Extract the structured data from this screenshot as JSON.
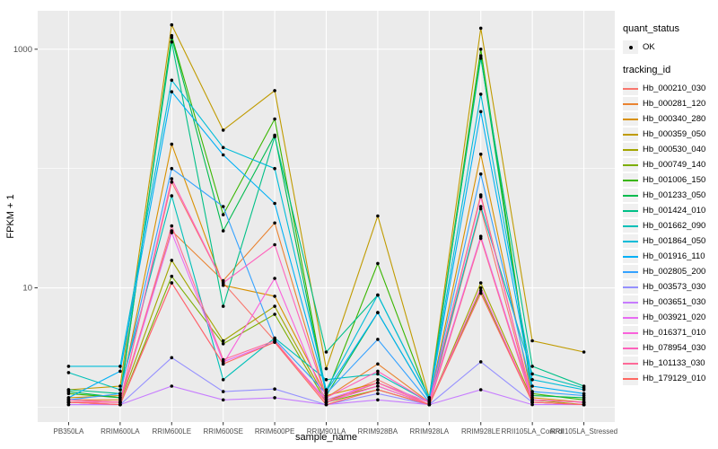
{
  "chart_data": {
    "type": "line",
    "title": "",
    "xlabel": "sample_name",
    "ylabel": "FPKM + 1",
    "yscale": "log10",
    "ylim": [
      0.75,
      2100
    ],
    "yticks": [
      {
        "value": 10,
        "label": "10"
      },
      {
        "value": 1000,
        "label": "1000"
      }
    ],
    "minor_gridlines": [
      1,
      100
    ],
    "grid_on": true,
    "legend_position": "right",
    "panel_bg": "#EBEBEB",
    "grid_color": "#FFFFFF",
    "point_color": "#000000",
    "axis_text_color": "#4D4D4D",
    "tick_color": "#333333",
    "categories": [
      "PB350LA",
      "RRIM600LA",
      "RRIM600LE",
      "RRIM600SE",
      "RRIM600PE",
      "RRIM901LA",
      "RRIM928BA",
      "RRIM928LA",
      "RRIM928LE",
      "RRII105LA_Control",
      "RRII105LA_Stressed"
    ],
    "series": [
      {
        "name": "Hb_000210_030",
        "color": "#F8766D",
        "values": [
          1.1,
          1.1,
          77,
          11,
          3.6,
          1.1,
          1.7,
          1.05,
          46,
          1.1,
          1.05
        ]
      },
      {
        "name": "Hb_000281_120",
        "color": "#EA8331",
        "values": [
          1.15,
          1.15,
          30,
          11.5,
          35,
          1.2,
          2.3,
          1.1,
          60,
          1.15,
          1.1
        ]
      },
      {
        "name": "Hb_000340_280",
        "color": "#D89000",
        "values": [
          1.2,
          1.25,
          160,
          10.5,
          8.5,
          1.25,
          1.6,
          1.1,
          132,
          1.2,
          1.1
        ]
      },
      {
        "name": "Hb_000359_050",
        "color": "#C09B00",
        "values": [
          1.4,
          1.5,
          1600,
          210,
          450,
          2.1,
          40,
          1.2,
          1500,
          3.6,
          2.9
        ]
      },
      {
        "name": "Hb_000530_040",
        "color": "#A3A500",
        "values": [
          1.15,
          1.1,
          17,
          3.6,
          7.0,
          1.15,
          1.5,
          1.05,
          11,
          1.15,
          1.05
        ]
      },
      {
        "name": "Hb_000749_140",
        "color": "#7CAE00",
        "values": [
          1.1,
          1.05,
          12.5,
          3.4,
          6.0,
          1.1,
          1.4,
          1.05,
          9.5,
          1.1,
          1.05
        ]
      },
      {
        "name": "Hb_001006_150",
        "color": "#39B600",
        "values": [
          1.3,
          1.2,
          1300,
          41,
          260,
          1.3,
          16,
          1.15,
          1000,
          1.3,
          1.15
        ]
      },
      {
        "name": "Hb_001233_050",
        "color": "#00BB4E",
        "values": [
          1.35,
          1.2,
          1250,
          30,
          190,
          1.25,
          6.2,
          1.15,
          880,
          1.25,
          1.2
        ]
      },
      {
        "name": "Hb_001424_010",
        "color": "#00C087",
        "values": [
          1.4,
          1.3,
          1150,
          7.0,
          185,
          2.9,
          8.7,
          1.2,
          840,
          2.2,
          1.5
        ]
      },
      {
        "name": "Hb_001662_090",
        "color": "#00C0B8",
        "values": [
          1.95,
          1.4,
          59,
          1.7,
          3.8,
          1.7,
          1.9,
          1.1,
          48,
          1.9,
          1.45
        ]
      },
      {
        "name": "Hb_001864_050",
        "color": "#00BCD8",
        "values": [
          2.2,
          2.2,
          550,
          150,
          100,
          1.4,
          8.7,
          1.2,
          420,
          1.7,
          1.4
        ]
      },
      {
        "name": "Hb_001916_110",
        "color": "#00B0F6",
        "values": [
          1.2,
          2.0,
          440,
          130,
          51,
          1.35,
          6.2,
          1.15,
          300,
          1.5,
          1.3
        ]
      },
      {
        "name": "Hb_002805_200",
        "color": "#35A2FF",
        "values": [
          1.15,
          1.3,
          100,
          48,
          3.7,
          1.3,
          3.7,
          1.1,
          90,
          1.35,
          1.25
        ]
      },
      {
        "name": "Hb_003573_030",
        "color": "#9590FF",
        "values": [
          1.05,
          1.05,
          2.6,
          1.35,
          1.42,
          1.05,
          1.3,
          1.05,
          2.4,
          1.1,
          1.05
        ]
      },
      {
        "name": "Hb_003651_030",
        "color": "#C77CFF",
        "values": [
          1.05,
          1.05,
          1.5,
          1.15,
          1.2,
          1.05,
          1.15,
          1.05,
          1.4,
          1.05,
          1.05
        ]
      },
      {
        "name": "Hb_003921_020",
        "color": "#E76BF3",
        "values": [
          1.1,
          1.1,
          29,
          2.4,
          3.5,
          1.15,
          1.6,
          1.1,
          27,
          1.15,
          1.1
        ]
      },
      {
        "name": "Hb_016371_010",
        "color": "#FA62DB",
        "values": [
          1.1,
          1.05,
          11,
          2.3,
          12,
          1.1,
          1.5,
          1.05,
          10,
          1.1,
          1.05
        ]
      },
      {
        "name": "Hb_078954_030",
        "color": "#FF62BC",
        "values": [
          1.15,
          1.1,
          82,
          11,
          23,
          1.2,
          2.0,
          1.1,
          58,
          1.15,
          1.1
        ]
      },
      {
        "name": "Hb_101133_030",
        "color": "#FF6A98",
        "values": [
          1.1,
          1.1,
          33,
          2.5,
          3.6,
          1.1,
          1.6,
          1.05,
          26,
          1.1,
          1.05
        ]
      },
      {
        "name": "Hb_179129_010",
        "color": "#FF6862",
        "values": [
          1.1,
          1.05,
          11,
          2.3,
          3.5,
          1.05,
          1.4,
          1.05,
          9.0,
          1.1,
          1.05
        ]
      }
    ]
  },
  "legend": {
    "quant_status": {
      "title": "quant_status",
      "items": [
        {
          "label": "OK",
          "symbol": "point"
        }
      ]
    },
    "tracking_id": {
      "title": "tracking_id"
    }
  }
}
